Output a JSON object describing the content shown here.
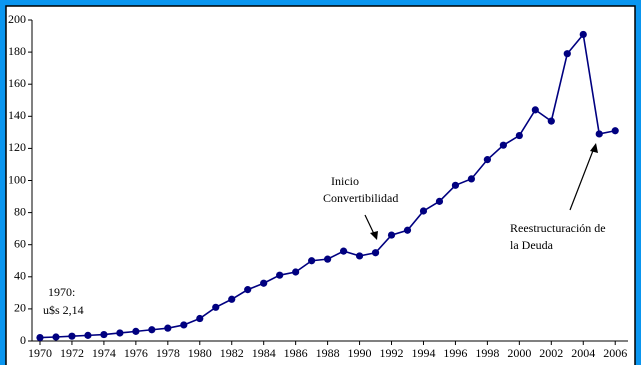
{
  "chart_data": {
    "type": "line",
    "x": [
      1970,
      1971,
      1972,
      1973,
      1974,
      1975,
      1976,
      1977,
      1978,
      1979,
      1980,
      1981,
      1982,
      1983,
      1984,
      1985,
      1986,
      1987,
      1988,
      1989,
      1990,
      1991,
      1992,
      1993,
      1994,
      1995,
      1996,
      1997,
      1998,
      1999,
      2000,
      2001,
      2002,
      2003,
      2004,
      2005,
      2006
    ],
    "series": [
      {
        "color": "#000080",
        "values": [
          2.14,
          2.5,
          3,
          3.5,
          4,
          5,
          6,
          7,
          8,
          10,
          14,
          21,
          26,
          32,
          36,
          41,
          43,
          50,
          51,
          56,
          53,
          55,
          66,
          69,
          81,
          87,
          97,
          101,
          113,
          122,
          128,
          144,
          137,
          179,
          191,
          129,
          131
        ]
      }
    ],
    "xlim": [
      1969.5,
      2006.8
    ],
    "xticks": [
      1970,
      1972,
      1974,
      1976,
      1978,
      1980,
      1982,
      1984,
      1986,
      1988,
      1990,
      1992,
      1994,
      1996,
      1998,
      2000,
      2002,
      2004,
      2006
    ],
    "ylim": [
      0,
      200
    ],
    "yticks": [
      0,
      20,
      40,
      60,
      80,
      100,
      120,
      140,
      160,
      180,
      200
    ],
    "grid": false,
    "annotations": [
      [
        "1970:",
        "u$s 2,14"
      ],
      [
        "Inicio",
        "Convertibilidad"
      ],
      [
        "Reestructuración de",
        "la Deuda"
      ]
    ]
  }
}
